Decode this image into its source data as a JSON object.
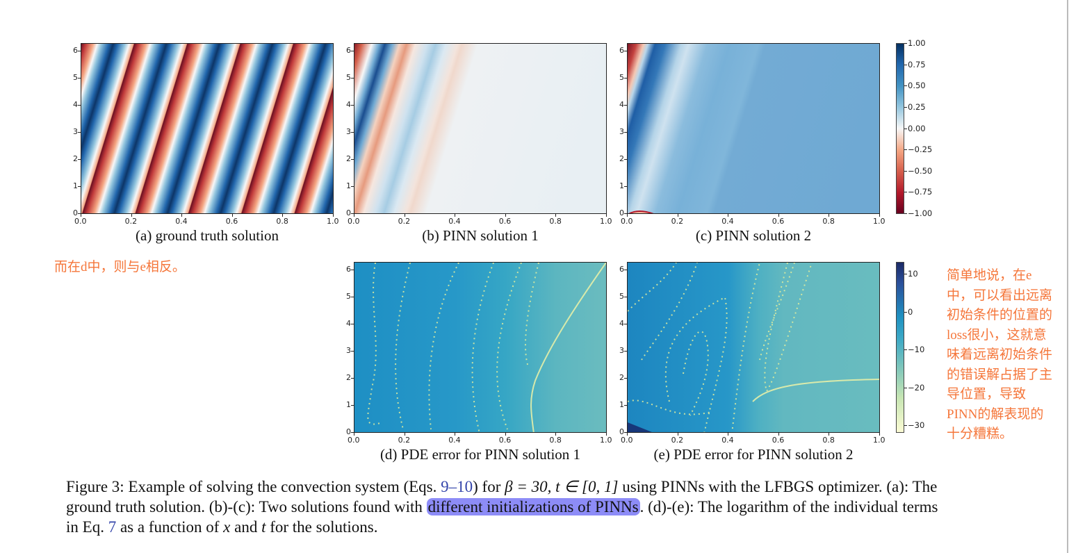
{
  "panels_top": [
    {
      "id": "a",
      "caption": "(a) ground truth solution"
    },
    {
      "id": "b",
      "caption": "(b) PINN solution 1"
    },
    {
      "id": "c",
      "caption": "(c) PINN solution 2"
    }
  ],
  "panels_bottom": [
    {
      "id": "d",
      "caption": "(d) PDE error for PINN solution 1"
    },
    {
      "id": "e",
      "caption": "(e) PDE error for PINN solution 2"
    }
  ],
  "x_ticks": [
    "0.0",
    "0.2",
    "0.4",
    "0.6",
    "0.8",
    "1.0"
  ],
  "y_ticks": [
    "0",
    "1",
    "2",
    "3",
    "4",
    "5",
    "6"
  ],
  "colorbar_top": {
    "ticks": [
      "1.00",
      "0.75",
      "0.50",
      "0.25",
      "0.00",
      "−0.25",
      "−0.50",
      "−0.75",
      "−1.00"
    ],
    "colormap": "RdBu",
    "colors": [
      "#67001f",
      "#f7f7f7",
      "#053061"
    ]
  },
  "colorbar_bottom": {
    "ticks": [
      "10",
      "0",
      "−10",
      "−20",
      "−30"
    ],
    "colormap": "YlGnBu",
    "colors": [
      "#ffffd9",
      "#41b6c4",
      "#081d58"
    ]
  },
  "annotations": {
    "left": "而在d中，则与e相反。",
    "right": [
      "简单地说，在e",
      "中，可以看出远离",
      "初始条件的位置的",
      "loss很小，这就意",
      "味着远离初始条件",
      "的错误解占据了主",
      "导位置，导致",
      "PINN的解表现的",
      "十分糟糕。"
    ],
    "color": "#f5763a"
  },
  "caption": {
    "p1": "Figure 3: Example of solving the convection system (Eqs. ",
    "ref1": "9",
    "dash": "–",
    "ref2": "10",
    "p2": ") for ",
    "math1": "β = 30, t ∈ [0, 1]",
    "p3": " using PINNs with the LFBGS optimizer. (a): The ground truth solution. (b)-(c): Two solutions found with ",
    "highlight": "different initializations of PINNs",
    "p4": ". (d)-(e): The logarithm of the individual terms in Eq. ",
    "ref3": "7",
    "p5": " as a function of ",
    "x": "x",
    "p6": " and ",
    "t": "t",
    "p7": " for the solutions.",
    "highlight_color": "#8d8cf7"
  }
}
